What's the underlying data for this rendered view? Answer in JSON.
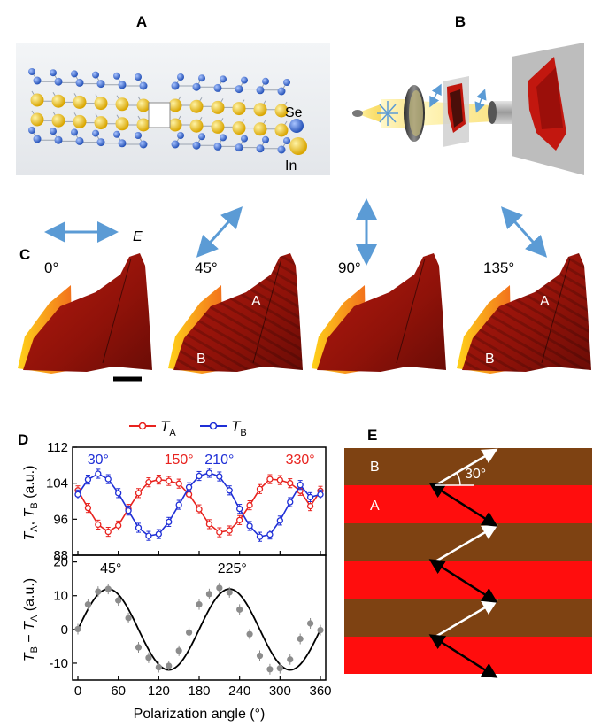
{
  "panels": {
    "A": {
      "label": "A",
      "legend": [
        {
          "element": "Se",
          "color": "#3b6fd6"
        },
        {
          "element": "In",
          "color": "#f2cc1c"
        }
      ]
    },
    "B": {
      "label": "B"
    },
    "C": {
      "label": "C",
      "field_label": "E",
      "scale_bar": true,
      "images": [
        {
          "angle": "0°",
          "arrow": "horizontal",
          "labels": []
        },
        {
          "angle": "45°",
          "arrow": "diagonal-up-right",
          "labels": [
            "A",
            "B"
          ]
        },
        {
          "angle": "90°",
          "arrow": "vertical",
          "labels": []
        },
        {
          "angle": "135°",
          "arrow": "diagonal-up-left",
          "labels": [
            "A",
            "B"
          ]
        }
      ]
    },
    "D": {
      "label": "D",
      "legend": [
        {
          "name": "T",
          "sub": "A",
          "color": "#e8231f"
        },
        {
          "name": "T",
          "sub": "B",
          "color": "#1f2fd6"
        }
      ],
      "top_ylabel": {
        "t1": "T",
        "s1": "A",
        "sep": ", ",
        "t2": "T",
        "s2": "B",
        "unit": " (a.u.)"
      },
      "bottom_ylabel": {
        "t1": "T",
        "s1": "B",
        "sep": " − ",
        "t2": "T",
        "s2": "A",
        "unit": " (a.u.)"
      },
      "xlabel": "Polarization angle (°)",
      "top_annotations": [
        {
          "text": "30°",
          "x": 30,
          "color": "#1f2fd6"
        },
        {
          "text": "150°",
          "x": 150,
          "color": "#e8231f"
        },
        {
          "text": "210°",
          "x": 210,
          "color": "#1f2fd6"
        },
        {
          "text": "330°",
          "x": 330,
          "color": "#e8231f"
        }
      ],
      "bottom_annotations": [
        {
          "text": "45°",
          "x": 45
        },
        {
          "text": "225°",
          "x": 225
        }
      ]
    },
    "E": {
      "label": "E",
      "band_labels": [
        "B",
        "A"
      ],
      "angle_label": "30°",
      "colors": {
        "A": "#ff0d0d",
        "B": "#7e4212"
      }
    }
  },
  "chart_data": [
    {
      "type": "line",
      "panel": "D-top",
      "xlim": [
        0,
        360
      ],
      "ylim": [
        88,
        112
      ],
      "xticks": [
        0,
        60,
        120,
        180,
        240,
        300,
        360
      ],
      "yticks": [
        88,
        96,
        104,
        112
      ],
      "x": [
        0,
        15,
        30,
        45,
        60,
        75,
        90,
        105,
        120,
        135,
        150,
        165,
        180,
        195,
        210,
        225,
        240,
        255,
        270,
        285,
        300,
        315,
        330,
        345,
        360
      ],
      "series": [
        {
          "name": "T_A",
          "color": "#e8231f",
          "values": [
            102.4,
            98.5,
            94.8,
            93.2,
            94.6,
            98.3,
            101.8,
            104.2,
            104.8,
            104.5,
            103.9,
            101.5,
            98.2,
            94.9,
            93.1,
            93.5,
            95.8,
            99.1,
            102.7,
            104.9,
            104.7,
            104.0,
            102.3,
            98.9,
            102.3
          ]
        },
        {
          "name": "T_B",
          "color": "#1f2fd6",
          "values": [
            101.5,
            104.8,
            106.1,
            104.9,
            101.8,
            97.9,
            94.1,
            92.3,
            92.7,
            95.4,
            99.2,
            103.1,
            105.6,
            106.3,
            105.5,
            102.4,
            98.3,
            94.5,
            92.1,
            92.6,
            95.7,
            99.8,
            103.6,
            100.9,
            101.5
          ]
        }
      ],
      "error": 1.0
    },
    {
      "type": "scatter",
      "panel": "D-bottom",
      "xlim": [
        0,
        360
      ],
      "ylim": [
        -15,
        22
      ],
      "xticks": [
        0,
        60,
        120,
        180,
        240,
        300,
        360
      ],
      "yticks": [
        -10,
        0,
        10,
        20
      ],
      "x": [
        0,
        15,
        30,
        45,
        60,
        75,
        90,
        105,
        120,
        135,
        150,
        165,
        180,
        195,
        210,
        225,
        240,
        255,
        270,
        285,
        300,
        315,
        330,
        345,
        360
      ],
      "values": [
        0.1,
        7.4,
        11.2,
        12.0,
        8.6,
        3.4,
        -5.3,
        -8.4,
        -11.2,
        -10.8,
        -6.3,
        -0.9,
        7.4,
        10.5,
        12.3,
        11.0,
        5.9,
        -1.4,
        -7.8,
        -11.8,
        -11.5,
        -8.9,
        -2.8,
        1.8,
        -0.2
      ],
      "fit": {
        "function": "12 sin(2x)"
      }
    }
  ]
}
